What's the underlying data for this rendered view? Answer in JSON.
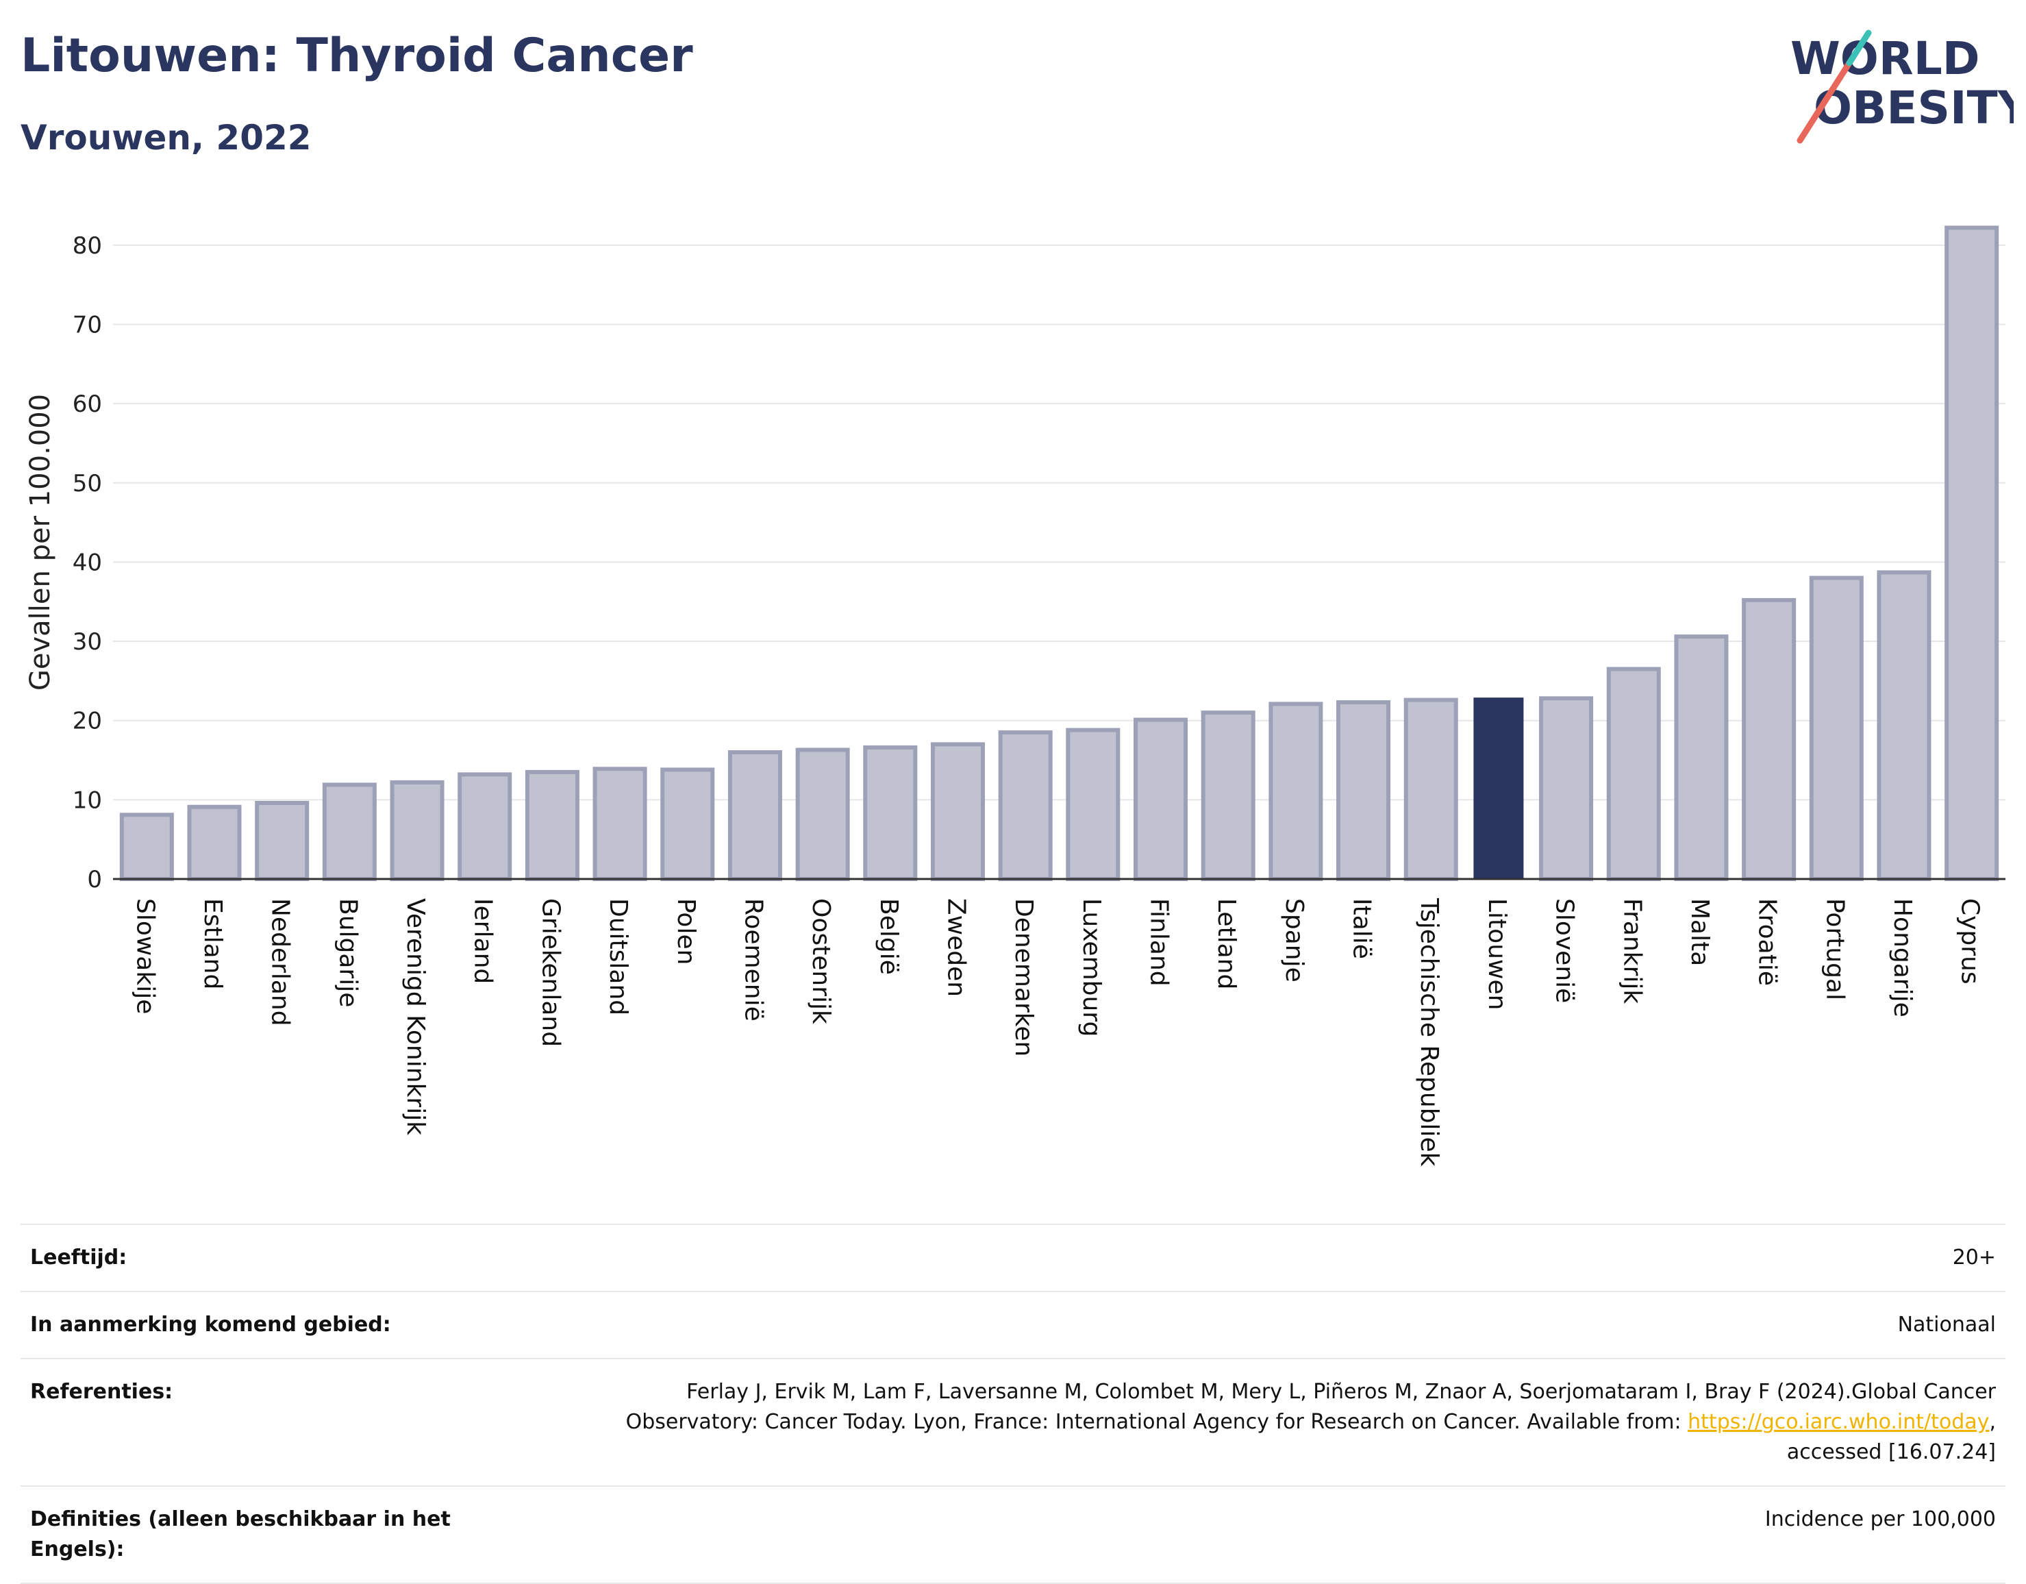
{
  "header": {
    "title": "Litouwen: Thyroid Cancer",
    "subtitle": "Vrouwen, 2022"
  },
  "logo": {
    "line1": "WORLD",
    "line2": "OBESITY",
    "colors": {
      "text": "#2b3660",
      "slash_red": "#e8675a",
      "slash_teal": "#3cc1b7"
    }
  },
  "chart_data": {
    "type": "bar",
    "ylabel": "Gevallen per 100.000",
    "xlabel": "",
    "ylim": [
      0,
      85
    ],
    "yticks": [
      0,
      10,
      20,
      30,
      40,
      50,
      60,
      70,
      80
    ],
    "grid": true,
    "highlight": "Litouwen",
    "colors": {
      "bar": "#c0c3cf",
      "bar_edge": "#9ca1b8",
      "highlight": "#2b3660",
      "grid": "#e6e6e6"
    },
    "categories": [
      "Slowakije",
      "Estland",
      "Nederland",
      "Bulgarije",
      "Verenigd Koninkrijk",
      "Ierland",
      "Griekenland",
      "Duitsland",
      "Polen",
      "Roemenië",
      "Oostenrijk",
      "België",
      "Zweden",
      "Denemarken",
      "Luxemburg",
      "Finland",
      "Letland",
      "Spanje",
      "Italië",
      "Tsjechische Republiek",
      "Litouwen",
      "Slovenië",
      "Frankrijk",
      "Malta",
      "Kroatië",
      "Portugal",
      "Hongarije",
      "Cyprus"
    ],
    "values": [
      8.1,
      9.1,
      9.6,
      11.9,
      12.2,
      13.2,
      13.5,
      13.9,
      13.8,
      16.0,
      16.3,
      16.6,
      17.0,
      18.5,
      18.8,
      20.1,
      21.0,
      22.1,
      22.3,
      22.6,
      22.9,
      22.8,
      26.5,
      30.6,
      35.2,
      38.0,
      38.7,
      82.2
    ]
  },
  "info": {
    "age_label": "Leeftijd:",
    "age_value": "20+",
    "area_label": "In aanmerking komend gebied:",
    "area_value": "Nationaal",
    "ref_label": "Referenties:",
    "ref_text_1": "Ferlay J, Ervik M, Lam F, Laversanne M, Colombet M, Mery L, Piñeros M, Znaor A, Soerjomataram I, Bray F (2024).Global Cancer",
    "ref_text_2": "Observatory: Cancer Today. Lyon, France: International Agency for Research on Cancer. Available from: ",
    "ref_link": "https://gco.iarc.who.int/today",
    "ref_text_3": ",",
    "ref_text_4": "accessed [16.07.24]",
    "def_label": "Definities (alleen beschikbaar in het Engels):",
    "def_value": "Incidence per 100,000"
  }
}
